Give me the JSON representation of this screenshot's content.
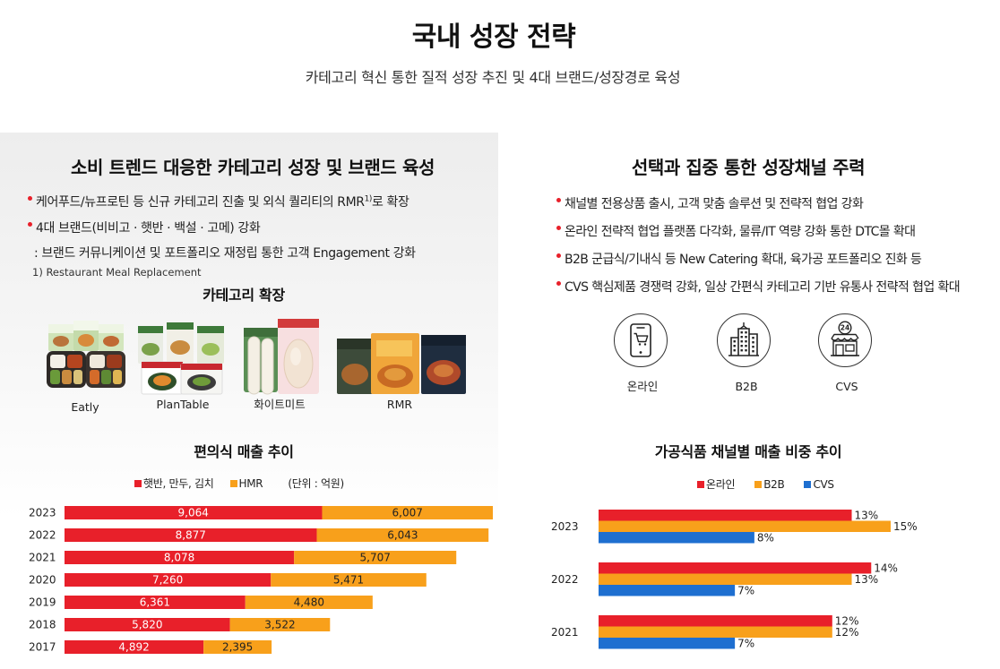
{
  "page": {
    "title": "국내 성장 전략",
    "subtitle": "카테고리 혁신 통한 질적 성장 추진 및 4대 브랜드/성장경로 육성"
  },
  "left": {
    "heading": "소비 트렌드 대응한 카테고리 성장 및 브랜드 육성",
    "bullet_1": {
      "text": "케어푸드/뉴프로틴 등 신규 카테고리 진출 및 외식 퀄리티의 RMR",
      "sup": "1)",
      "text_after": "로 확장"
    },
    "bullet_2": "4대 브랜드(비비고 · 햇반 · 백설 · 고메) 강화",
    "bullet_2_detail": ": 브랜드 커뮤니케이션 및 포트폴리오 재정립 통한 고객 Engagement 강화",
    "footnote": "1) Restaurant Meal Replacement",
    "category_heading": "카테고리 확장",
    "products": [
      {
        "label": "Eatly"
      },
      {
        "label": "PlanTable"
      },
      {
        "label": "화이트미트"
      },
      {
        "label": "RMR"
      }
    ]
  },
  "right": {
    "heading": "선택과 집중 통한 성장채널 주력",
    "bullets": [
      "채널별 전용상품 출시, 고객 맞춤 솔루션 및 전략적 협업 강화",
      "온라인 전략적 협업 플랫폼 다각화, 물류/IT 역량 강화 통한 DTC몰 확대",
      "B2B 군급식/기내식 등 New Catering 확대, 육가공 포트폴리오 진화 등",
      "CVS 핵심제품 경쟁력 강화, 일상 간편식 카테고리 기반 유통사 전략적 협업 확대"
    ],
    "channels": [
      {
        "label": "온라인",
        "icon": "mobile-shopping-cart-icon"
      },
      {
        "label": "B2B",
        "icon": "office-buildings-icon"
      },
      {
        "label": "CVS",
        "icon": "convenience-store-icon",
        "badge": "24"
      }
    ]
  },
  "chart_data": [
    {
      "type": "bar",
      "orientation": "horizontal",
      "stacked": true,
      "title": "편의식 매출 추이",
      "unit": "(단위 : 억원)",
      "categories": [
        "2023",
        "2022",
        "2021",
        "2020",
        "2019",
        "2018",
        "2017"
      ],
      "series": [
        {
          "name": "햇반, 만두, 김치",
          "color": "#e8202a",
          "values": [
            9064,
            8877,
            8078,
            7260,
            6361,
            5820,
            4892
          ]
        },
        {
          "name": "HMR",
          "color": "#f8a01b",
          "values": [
            6007,
            6043,
            5707,
            5471,
            4480,
            3522,
            2395
          ]
        }
      ],
      "legend": "top",
      "grid": false
    },
    {
      "type": "bar",
      "orientation": "horizontal",
      "grouped": true,
      "title": "가공식품 채널별 매출 비중 추이",
      "value_suffix": "%",
      "categories": [
        "2023",
        "2022",
        "2021"
      ],
      "series": [
        {
          "name": "온라인",
          "color": "#e8202a",
          "values": [
            13,
            14,
            12
          ]
        },
        {
          "name": "B2B",
          "color": "#f8a01b",
          "values": [
            15,
            13,
            12
          ]
        },
        {
          "name": "CVS",
          "color": "#1e6fd0",
          "values": [
            8,
            7,
            7
          ]
        }
      ],
      "legend": "top",
      "grid": false
    }
  ]
}
